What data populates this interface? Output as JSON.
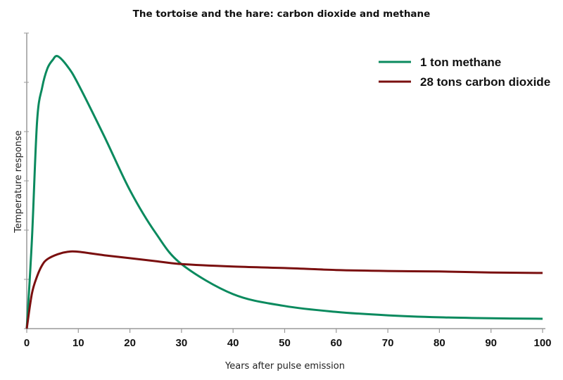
{
  "chart_data": {
    "type": "line",
    "title": "The tortoise and the hare: carbon dioxide and methane",
    "xlabel": "Years after pulse emission",
    "ylabel": "Temperature response",
    "xlim": [
      0,
      100
    ],
    "ylim": [
      0,
      6
    ],
    "x_ticks": [
      "0",
      "10",
      "20",
      "30",
      "40",
      "50",
      "60",
      "70",
      "80",
      "90",
      "100"
    ],
    "y_ticks_unlabeled": [
      0,
      1,
      2,
      3,
      4,
      5,
      6
    ],
    "legend_position": "top-right",
    "series": [
      {
        "name": "1 ton methane",
        "color": "#0a8a5e",
        "x": [
          0,
          1,
          2,
          3,
          4,
          5,
          6,
          8,
          10,
          15,
          20,
          25,
          30,
          40,
          50,
          60,
          70,
          80,
          90,
          100
        ],
        "y": [
          0,
          1.8,
          4.2,
          4.9,
          5.28,
          5.45,
          5.53,
          5.31,
          4.96,
          3.91,
          2.81,
          1.94,
          1.31,
          0.7,
          0.46,
          0.34,
          0.27,
          0.23,
          0.21,
          0.2
        ]
      },
      {
        "name": "28 tons carbon dioxide",
        "color": "#7a0f0f",
        "x": [
          0,
          1,
          2,
          3,
          4,
          6,
          8,
          10,
          15,
          20,
          25,
          30,
          40,
          50,
          60,
          70,
          80,
          90,
          100
        ],
        "y": [
          0,
          0.71,
          1.06,
          1.29,
          1.41,
          1.51,
          1.56,
          1.56,
          1.49,
          1.43,
          1.37,
          1.31,
          1.26,
          1.23,
          1.19,
          1.17,
          1.16,
          1.14,
          1.13
        ]
      }
    ]
  }
}
